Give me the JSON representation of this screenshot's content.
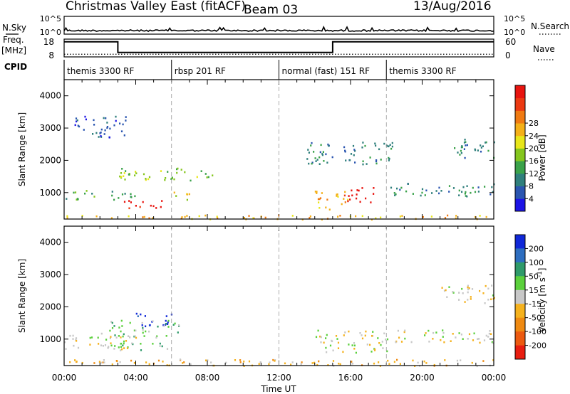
{
  "header": {
    "station": "Christmas Valley East (fitACF)",
    "beam": "Beam 03",
    "date": "13/Aug/2016"
  },
  "panels": {
    "nsky": {
      "left_label": "N.Sky",
      "left_ticks": [
        "10^5",
        "10^0"
      ],
      "right_ticks": [
        "10^5",
        "10^0"
      ],
      "right_label": "N.Search"
    },
    "freq": {
      "label_line1": "Freq.",
      "label_line2": "[MHz]",
      "left_ticks": [
        "18",
        "8"
      ],
      "right_ticks": [
        "60",
        "0"
      ],
      "right_label": "Nave"
    },
    "cpid": {
      "label": "CPID",
      "segments": [
        {
          "start": 0,
          "end": 6,
          "label": "themis 3300 RF"
        },
        {
          "start": 6,
          "end": 12,
          "label": "rbsp 201 RF"
        },
        {
          "start": 12,
          "end": 18,
          "label": "normal (fast) 151 RF"
        },
        {
          "start": 18,
          "end": 24,
          "label": "themis 3300 RF"
        }
      ]
    }
  },
  "axes": {
    "ylabel": "Slant Range [km]",
    "xlabel": "Time UT",
    "y_ticks": [
      "1000",
      "2000",
      "3000",
      "4000"
    ],
    "x_ticks": [
      "00:00",
      "04:00",
      "08:00",
      "12:00",
      "16:00",
      "20:00",
      "00:00"
    ]
  },
  "colorbars": {
    "power": {
      "label": "Power [dB]",
      "ticks": [
        "4",
        "8",
        "12",
        "16",
        "20",
        "24",
        "28"
      ],
      "colors": [
        "#1c14e6",
        "#2a55b0",
        "#2f7f7c",
        "#3aa24a",
        "#85c61e",
        "#e8e61a",
        "#f4b018",
        "#f07a12",
        "#ec3a12",
        "#e8140f"
      ]
    },
    "velocity": {
      "label_prefix": "Velocity [m s",
      "label_exp": "-1",
      "label_suffix": "]",
      "ticks": [
        "200",
        "100",
        "50",
        "15",
        "-15",
        "-50",
        "-100",
        "-200"
      ],
      "colors": [
        "#1028d8",
        "#2e6ec0",
        "#2f9a6a",
        "#5bd03c",
        "#c8c8c8",
        "#f5b21e",
        "#ef8a12",
        "#ec5a10",
        "#e81e10"
      ]
    }
  },
  "chart_data": {
    "type": "heatmap",
    "title": "Christmas Valley East (fitACF) Beam 03 13/Aug/2016",
    "xlabel": "Time UT",
    "ylabel": "Slant Range [km]",
    "xlim_hours": [
      0,
      24
    ],
    "ylim_km": [
      180,
      4500
    ],
    "frequency_steps_mhz": [
      {
        "start": 0,
        "end": 3,
        "value": 16.5
      },
      {
        "start": 3,
        "end": 15,
        "value": 10.5
      },
      {
        "start": 15,
        "end": 24,
        "value": 16.5
      }
    ],
    "nave_level": 9,
    "power_regions": [
      {
        "t0": 0.0,
        "t1": 24.0,
        "r0": 190,
        "r1": 320,
        "level": 6
      },
      {
        "t0": 3.0,
        "t1": 5.5,
        "r0": 520,
        "r1": 800,
        "level": 9
      },
      {
        "t0": 5.5,
        "t1": 7.0,
        "r0": 800,
        "r1": 1050,
        "level": 5
      },
      {
        "t0": 3.0,
        "t1": 8.5,
        "r0": 1400,
        "r1": 1800,
        "level": 4
      },
      {
        "t0": 0.0,
        "t1": 4.0,
        "r0": 800,
        "r1": 1100,
        "level": 3
      },
      {
        "t0": 0.5,
        "t1": 3.5,
        "r0": 2700,
        "r1": 3400,
        "level": 1
      },
      {
        "t0": 14.0,
        "t1": 16.0,
        "r0": 500,
        "r1": 1100,
        "level": 6
      },
      {
        "t0": 15.5,
        "t1": 17.3,
        "r0": 700,
        "r1": 1200,
        "level": 9
      },
      {
        "t0": 13.5,
        "t1": 18.5,
        "r0": 1900,
        "r1": 2600,
        "level": 2
      },
      {
        "t0": 18.0,
        "t1": 24.0,
        "r0": 900,
        "r1": 1300,
        "level": 2
      },
      {
        "t0": 21.5,
        "t1": 24.0,
        "r0": 2100,
        "r1": 2700,
        "level": 2
      }
    ],
    "velocity_regions": [
      {
        "t0": 4.0,
        "t1": 6.0,
        "r0": 1400,
        "r1": 1850,
        "level": 0
      },
      {
        "t0": 2.5,
        "t1": 6.5,
        "r0": 1050,
        "r1": 1600,
        "level": 3
      },
      {
        "t0": 2.0,
        "t1": 6.0,
        "r0": 650,
        "r1": 900,
        "level": 3
      },
      {
        "t0": 0.0,
        "t1": 24.0,
        "r0": 190,
        "r1": 400,
        "level": 5
      },
      {
        "t0": 0.0,
        "t1": 4.0,
        "r0": 700,
        "r1": 1200,
        "level": 4
      },
      {
        "t0": 14.0,
        "t1": 18.0,
        "r0": 600,
        "r1": 1300,
        "level": 4
      },
      {
        "t0": 18.0,
        "t1": 24.0,
        "r0": 900,
        "r1": 1300,
        "level": 4
      },
      {
        "t0": 21.0,
        "t1": 24.0,
        "r0": 2100,
        "r1": 2700,
        "level": 4
      }
    ]
  }
}
